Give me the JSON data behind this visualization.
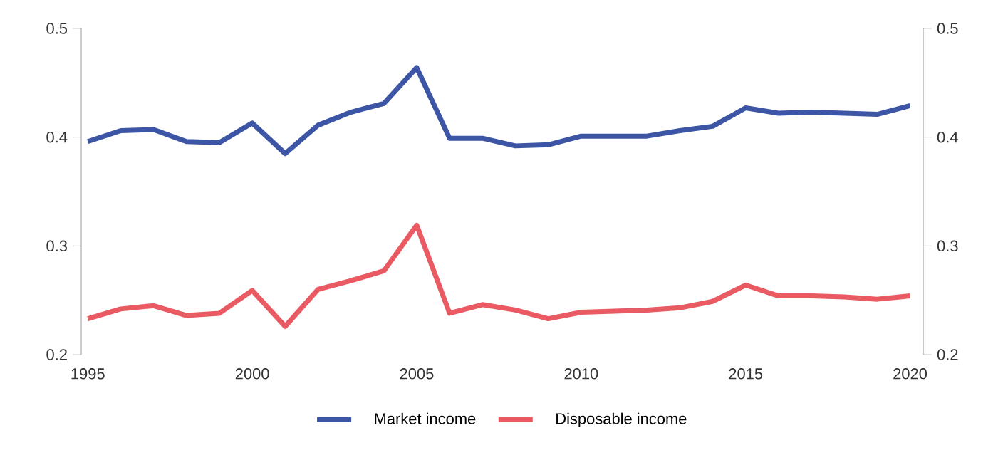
{
  "chart_data": {
    "type": "line",
    "x": [
      1995,
      1996,
      1997,
      1998,
      1999,
      2000,
      2001,
      2002,
      2003,
      2004,
      2005,
      2006,
      2007,
      2008,
      2009,
      2010,
      2011,
      2012,
      2013,
      2014,
      2015,
      2016,
      2017,
      2018,
      2019,
      2020
    ],
    "series": [
      {
        "name": "Market income",
        "color": "#3c55a5",
        "values": [
          0.396,
          0.406,
          0.407,
          0.396,
          0.395,
          0.413,
          0.385,
          0.411,
          0.423,
          0.431,
          0.464,
          0.399,
          0.399,
          0.392,
          0.393,
          0.401,
          0.401,
          0.401,
          0.406,
          0.41,
          0.427,
          0.422,
          0.423,
          0.422,
          0.421,
          0.429
        ]
      },
      {
        "name": "Disposable income",
        "color": "#e95a63",
        "values": [
          0.233,
          0.242,
          0.245,
          0.236,
          0.238,
          0.259,
          0.226,
          0.26,
          0.268,
          0.277,
          0.319,
          0.238,
          0.246,
          0.241,
          0.233,
          0.239,
          0.24,
          0.241,
          0.243,
          0.249,
          0.264,
          0.254,
          0.254,
          0.253,
          0.251,
          0.254
        ]
      }
    ],
    "xlim": [
      1994.8,
      2020.4
    ],
    "xticks": [
      1995,
      2000,
      2005,
      2010,
      2015,
      2020
    ],
    "ylim": [
      0.2,
      0.5
    ],
    "yticks": [
      0.2,
      0.3,
      0.4,
      0.5
    ],
    "y2lim": [
      0.2,
      0.5
    ],
    "y2ticks": [
      0.2,
      0.3,
      0.4,
      0.5
    ],
    "grid": false,
    "legend": "bottom",
    "marker": "none",
    "line_style": "solid"
  }
}
